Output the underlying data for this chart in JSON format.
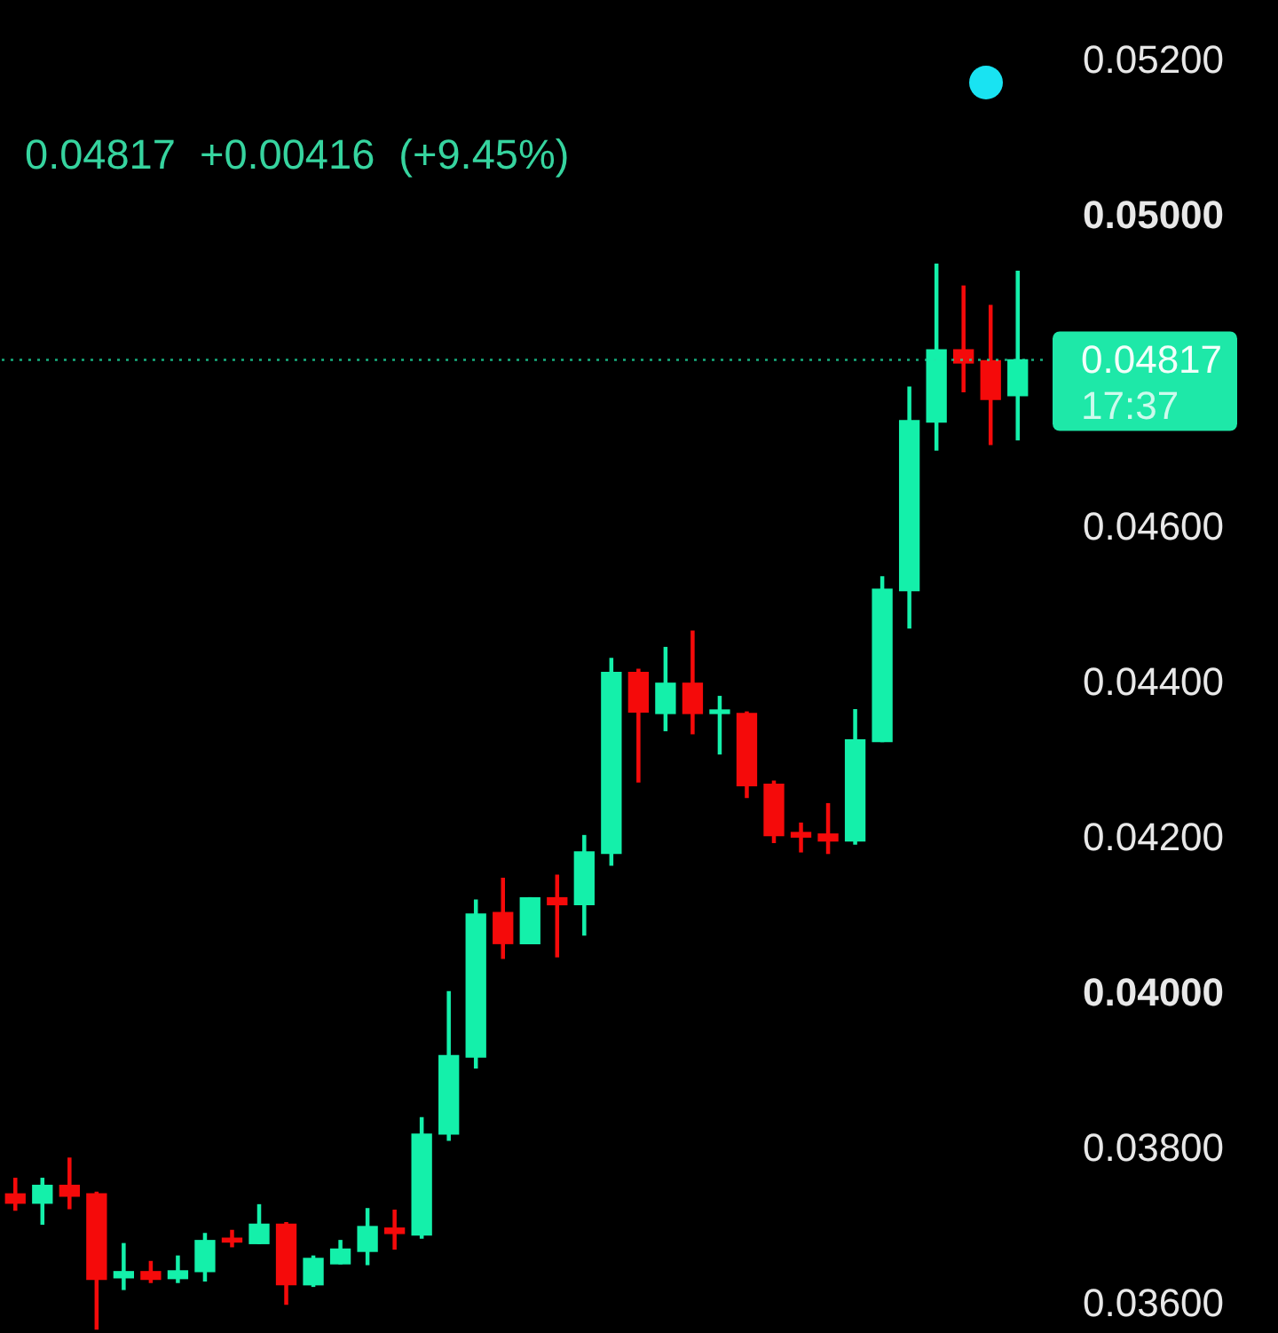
{
  "chart_data": {
    "type": "candlestick",
    "subtitle": "0.04817 +0.00416 (+9.45%)",
    "categories": [
      null,
      null,
      null,
      null,
      null,
      null,
      null,
      null,
      null,
      null,
      null,
      null,
      null,
      null,
      null,
      null,
      null,
      null,
      null,
      null,
      null,
      null,
      null,
      null,
      null,
      null,
      null,
      null,
      null,
      null,
      null,
      null,
      null,
      null,
      null,
      null,
      null,
      null
    ],
    "ohlc": [
      [
        0.03744,
        0.03764,
        0.03723,
        0.03732
      ],
      [
        0.03732,
        0.03764,
        0.03705,
        0.03755
      ],
      [
        0.03755,
        0.0379,
        0.03725,
        0.03741
      ],
      [
        0.03744,
        0.03746,
        0.0357,
        0.03634
      ],
      [
        0.03636,
        0.0368,
        0.03621,
        0.03644
      ],
      [
        0.03644,
        0.03657,
        0.0363,
        0.03634
      ],
      [
        0.03635,
        0.03664,
        0.0363,
        0.03645
      ],
      [
        0.03644,
        0.03693,
        0.03632,
        0.03684
      ],
      [
        0.03687,
        0.03697,
        0.03676,
        0.03682
      ],
      [
        0.0368,
        0.0373,
        0.0368,
        0.03705
      ],
      [
        0.03705,
        0.03707,
        0.03602,
        0.03627
      ],
      [
        0.03627,
        0.03664,
        0.03625,
        0.03661
      ],
      [
        0.03654,
        0.03684,
        0.03654,
        0.03673
      ],
      [
        0.0367,
        0.03725,
        0.03653,
        0.03702
      ],
      [
        0.037,
        0.03723,
        0.03673,
        0.03693
      ],
      [
        0.03691,
        0.03842,
        0.03687,
        0.03821
      ],
      [
        0.03821,
        0.04004,
        0.03813,
        0.03922
      ],
      [
        0.0392,
        0.04122,
        0.03906,
        0.04104
      ],
      [
        0.04106,
        0.0415,
        0.04047,
        0.04066
      ],
      [
        0.04066,
        0.04125,
        0.04066,
        0.04125
      ],
      [
        0.04125,
        0.04154,
        0.04049,
        0.04116
      ],
      [
        0.04116,
        0.04205,
        0.04077,
        0.04184
      ],
      [
        0.04182,
        0.04433,
        0.04167,
        0.04415
      ],
      [
        0.04415,
        0.04419,
        0.04274,
        0.04364
      ],
      [
        0.04362,
        0.04447,
        0.0434,
        0.04401
      ],
      [
        0.04401,
        0.04468,
        0.04336,
        0.04362
      ],
      [
        0.04362,
        0.04384,
        0.0431,
        0.04364
      ],
      [
        0.04362,
        0.04364,
        0.04254,
        0.04269
      ],
      [
        0.04271,
        0.04275,
        0.04196,
        0.04205
      ],
      [
        0.04209,
        0.04221,
        0.04184,
        0.04203
      ],
      [
        0.04207,
        0.04246,
        0.04182,
        0.04198
      ],
      [
        0.04198,
        0.04367,
        0.04194,
        0.04328
      ],
      [
        0.04326,
        0.04538,
        0.04326,
        0.04522
      ],
      [
        0.0452,
        0.04782,
        0.04472,
        0.04739
      ],
      [
        0.04737,
        0.0494,
        0.04701,
        0.0483
      ],
      [
        0.0483,
        0.04912,
        0.04776,
        0.04813
      ],
      [
        0.04816,
        0.04887,
        0.04708,
        0.04766
      ],
      [
        0.04771,
        0.04931,
        0.04714,
        0.04817
      ]
    ],
    "colors": [
      "#f50a0a",
      "#14f0aa",
      "#f50a0a",
      "#f50a0a",
      "#14f0aa",
      "#f50a0a",
      "#14f0aa",
      "#14f0aa",
      "#f50a0a",
      "#14f0aa",
      "#f50a0a",
      "#14f0aa",
      "#14f0aa",
      "#14f0aa",
      "#f50a0a",
      "#14f0aa",
      "#14f0aa",
      "#14f0aa",
      "#f50a0a",
      "#14f0aa",
      "#f50a0a",
      "#14f0aa",
      "#14f0aa",
      "#f50a0a",
      "#14f0aa",
      "#f50a0a",
      "#14f0aa",
      "#f50a0a",
      "#f50a0a",
      "#f50a0a",
      "#f50a0a",
      "#14f0aa",
      "#14f0aa",
      "#14f0aa",
      "#14f0aa",
      "#f50a0a",
      "#f50a0a",
      "#14f0aa"
    ],
    "ylim": [
      0.03565,
      0.0528
    ],
    "yticks": [
      {
        "value": 0.036,
        "label": "0.03600"
      },
      {
        "value": 0.038,
        "label": "0.03800"
      },
      {
        "value": 0.04,
        "label": "0.04000"
      },
      {
        "value": 0.042,
        "label": "0.04200"
      },
      {
        "value": 0.044,
        "label": "0.04400"
      },
      {
        "value": 0.046,
        "label": "0.04600"
      },
      {
        "value": 0.05,
        "label": "0.05000"
      },
      {
        "value": 0.052,
        "label": "0.05200"
      }
    ],
    "tick_labels": "y",
    "grid": false,
    "legend": false,
    "ref_lines": [
      {
        "axis": "y",
        "value": 0.04817,
        "label": "0.04817",
        "color": "#1ee8a8",
        "line_style": "dotted"
      }
    ],
    "annotations": [
      "17:37"
    ]
  }
}
